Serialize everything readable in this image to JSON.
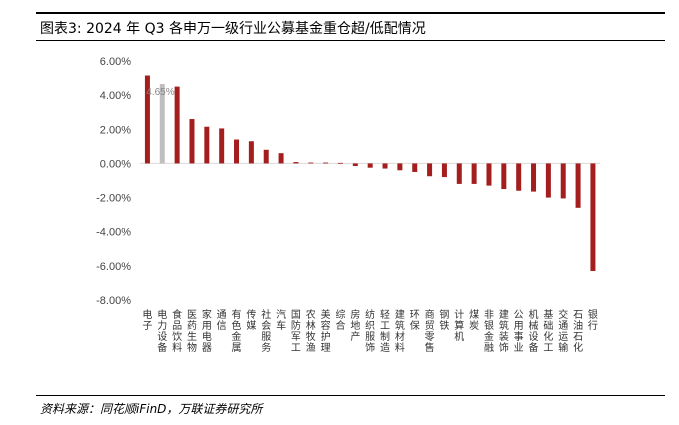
{
  "header": {
    "title": "图表3:  2024 年 Q3 各申万一级行业公募基金重仓超/低配情况"
  },
  "footer": {
    "source": "资料来源：同花顺iFinD，万联证券研究所"
  },
  "colors": {
    "bar": "#A51E1E",
    "highlight": "#BFBFBF"
  },
  "chart_data": {
    "type": "bar",
    "categories": [
      "电子",
      "电力设备",
      "食品饮料",
      "医药生物",
      "家用电器",
      "通信",
      "有色金属",
      "传媒",
      "社会服务",
      "汽车",
      "国防军工",
      "农林牧渔",
      "美容护理",
      "综合",
      "房地产",
      "纺织服饰",
      "轻工制造",
      "建筑材料",
      "环保",
      "商贸零售",
      "钢铁",
      "计算机",
      "煤炭",
      "非银金融",
      "建筑装饰",
      "公用事业",
      "机械设备",
      "基础化工",
      "交通运输",
      "石油石化",
      "银行"
    ],
    "values": [
      5.15,
      4.65,
      4.5,
      2.6,
      2.15,
      2.05,
      1.4,
      1.3,
      0.8,
      0.6,
      0.08,
      0.05,
      0.05,
      0.03,
      -0.15,
      -0.25,
      -0.3,
      -0.4,
      -0.5,
      -0.75,
      -0.8,
      -1.2,
      -1.2,
      -1.3,
      -1.5,
      -1.6,
      -1.65,
      -2.0,
      -2.05,
      -2.6,
      -6.3
    ],
    "highlight_index": 1,
    "data_labels": [
      {
        "index": 1,
        "text": "4.65%"
      }
    ],
    "ylim": [
      -8,
      6
    ],
    "yticks": [
      "6.00%",
      "4.00%",
      "2.00%",
      "0.00%",
      "-2.00%",
      "-4.00%",
      "-6.00%",
      "-8.00%"
    ],
    "title": "",
    "xlabel": "",
    "ylabel": ""
  }
}
